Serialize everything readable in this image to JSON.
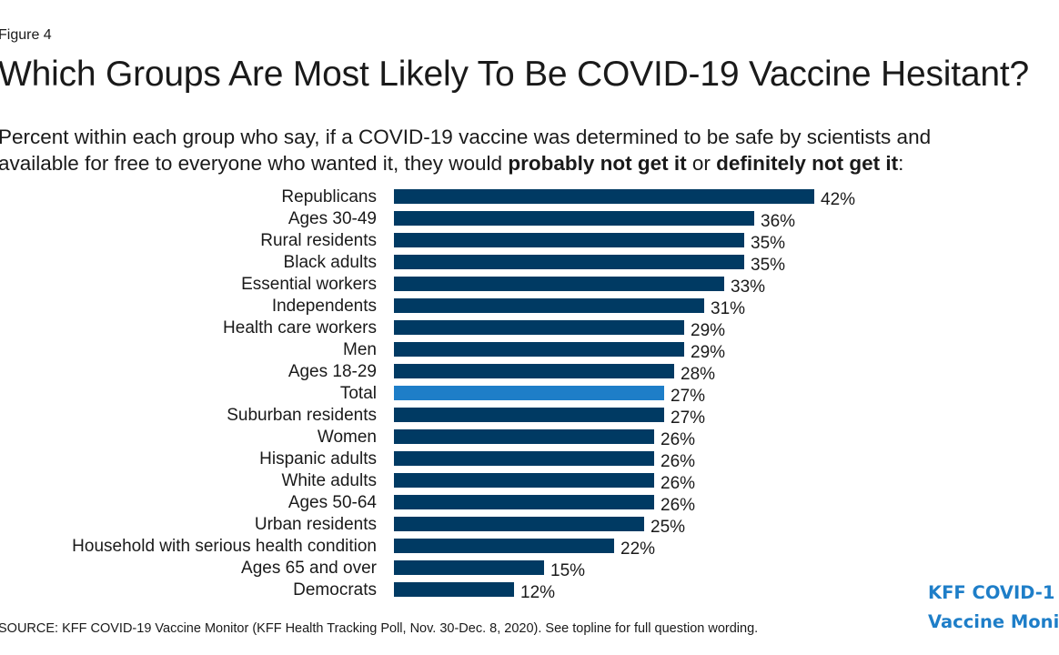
{
  "header": {
    "figure_label": "Figure 4",
    "title": "Which Groups Are Most Likely To Be COVID-19 Vaccine Hesitant?",
    "subtitle_part1": "Percent within each group who say, if a COVID-19 vaccine was determined to be safe by scientists and",
    "subtitle_part2": "available for free to everyone who wanted it, they would ",
    "subtitle_bold1": "probably not get it",
    "subtitle_mid": " or ",
    "subtitle_bold2": "definitely not get it",
    "subtitle_end": ":"
  },
  "chart_data": {
    "type": "bar",
    "orientation": "horizontal",
    "categories": [
      "Republicans",
      "Ages 30-49",
      "Rural residents",
      "Black adults",
      "Essential workers",
      "Independents",
      "Health care workers",
      "Men",
      "Ages 18-29",
      "Total",
      "Suburban residents",
      "Women",
      "Hispanic adults",
      "White adults",
      "Ages 50-64",
      "Urban residents",
      "Household with serious health condition",
      "Ages 65 and over",
      "Democrats"
    ],
    "values": [
      42,
      36,
      35,
      35,
      33,
      31,
      29,
      29,
      28,
      27,
      27,
      26,
      26,
      26,
      26,
      25,
      22,
      15,
      12
    ],
    "value_labels": [
      "42%",
      "36%",
      "35%",
      "35%",
      "33%",
      "31%",
      "29%",
      "29%",
      "28%",
      "27%",
      "27%",
      "26%",
      "26%",
      "26%",
      "26%",
      "25%",
      "22%",
      "15%",
      "12%"
    ],
    "highlight_category": "Total",
    "colors": {
      "bar": "#003a63",
      "highlight": "#1e7ec8"
    },
    "xlim": [
      0,
      42
    ],
    "grid": false,
    "legend": false
  },
  "footer": {
    "source": "SOURCE: KFF COVID-19 Vaccine Monitor (KFF Health Tracking Poll, Nov. 30-Dec. 8, 2020). See topline for full question wording."
  },
  "brand": {
    "line1": "KFF COVID-1",
    "line2": "Vaccine Moni",
    "color": "#1e7ec8"
  }
}
